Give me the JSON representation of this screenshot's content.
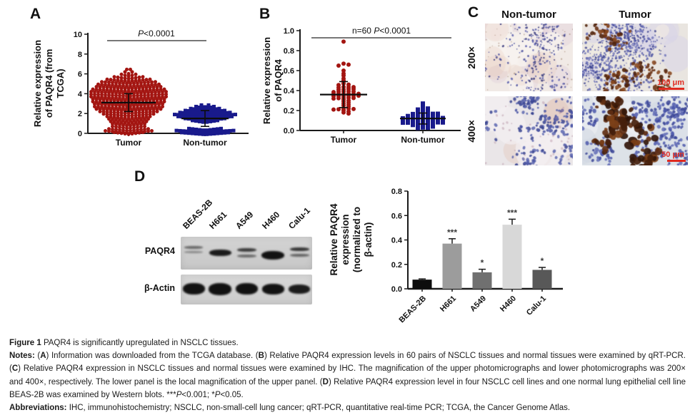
{
  "panels": {
    "A": {
      "label": "A"
    },
    "B": {
      "label": "B"
    },
    "C": {
      "label": "C",
      "col_headers": [
        "Non-tumor",
        "Tumor"
      ],
      "row_labels": [
        "200×",
        "400×"
      ],
      "scale_bars": [
        "100 μm",
        "50 μm"
      ],
      "scalebar_color": "#e02a20"
    },
    "D": {
      "label": "D",
      "blot": {
        "rows": [
          "PAQR4",
          "β-Actin"
        ],
        "lanes": [
          "BEAS-2B",
          "H661",
          "A549",
          "H460",
          "Calu-1"
        ],
        "paqr4_bands": [
          {
            "y": 13,
            "h": 5,
            "w": 26,
            "o": 0.55,
            "double": true
          },
          {
            "y": 18,
            "h": 9,
            "w": 31,
            "o": 0.95
          },
          {
            "y": 16,
            "h": 7,
            "w": 27,
            "o": 0.78,
            "double": true
          },
          {
            "y": 20,
            "h": 12,
            "w": 32,
            "o": 1.0
          },
          {
            "y": 15,
            "h": 7,
            "w": 27,
            "o": 0.82,
            "double": true
          }
        ],
        "actin_bands": [
          {
            "y": 12,
            "h": 16,
            "w": 31,
            "o": 1.0
          },
          {
            "y": 12,
            "h": 17,
            "w": 32,
            "o": 1.0
          },
          {
            "y": 12,
            "h": 16,
            "w": 31,
            "o": 1.0
          },
          {
            "y": 13,
            "h": 15,
            "w": 31,
            "o": 1.0
          },
          {
            "y": 14,
            "h": 13,
            "w": 30,
            "o": 0.95
          }
        ]
      }
    }
  },
  "colors": {
    "tumor_red": "#a31511",
    "nontumor_blue": "#191a8c",
    "axis": "#1a1a1a",
    "mean_line": "#0d0d0d"
  },
  "chart_data": [
    {
      "id": "A",
      "type": "scatter",
      "title": "",
      "ylabel": "Relative expression of PAQR4 (from TCGA)",
      "ylabel_lines": [
        "Relative expression",
        "of PAQR4 (from",
        "TCGA)"
      ],
      "ylim": [
        0,
        10
      ],
      "yticks": [
        "0",
        "2",
        "4",
        "6",
        "8",
        "10"
      ],
      "categories": [
        "Tumor",
        "Non-tumor"
      ],
      "annotation": [
        [
          "i",
          "P"
        ],
        [
          "r",
          "<0.0001"
        ]
      ],
      "series": [
        {
          "name": "Tumor",
          "marker": "circle",
          "color": "#a31511",
          "mean": 3.1,
          "sd": 0.9,
          "rows": [
            [
              6.45,
              2
            ],
            [
              6.2,
              3
            ],
            [
              5.95,
              5
            ],
            [
              5.7,
              9
            ],
            [
              5.45,
              13
            ],
            [
              5.2,
              16
            ],
            [
              4.95,
              18
            ],
            [
              4.7,
              19
            ],
            [
              4.45,
              21
            ],
            [
              4.2,
              22
            ],
            [
              3.95,
              22
            ],
            [
              3.7,
              22
            ],
            [
              3.45,
              21
            ],
            [
              3.2,
              21
            ],
            [
              2.95,
              20
            ],
            [
              2.7,
              20
            ],
            [
              2.45,
              19
            ],
            [
              2.2,
              17
            ],
            [
              1.95,
              15
            ],
            [
              1.7,
              13
            ],
            [
              1.45,
              12
            ],
            [
              1.2,
              11
            ],
            [
              0.95,
              10
            ],
            [
              0.7,
              10
            ],
            [
              0.45,
              12
            ],
            [
              0.25,
              14
            ],
            [
              0.1,
              9
            ]
          ]
        },
        {
          "name": "Non-tumor",
          "marker": "square",
          "color": "#191a8c",
          "mean": 1.5,
          "sd": 0.8,
          "rows": [
            [
              0.08,
              14
            ],
            [
              0.28,
              17
            ],
            [
              0.48,
              10
            ],
            [
              1.3,
              8
            ],
            [
              1.5,
              12
            ],
            [
              1.7,
              16
            ],
            [
              1.9,
              18
            ],
            [
              2.1,
              15
            ],
            [
              2.3,
              12
            ],
            [
              2.5,
              9
            ],
            [
              2.7,
              6
            ],
            [
              2.85,
              3
            ]
          ]
        }
      ]
    },
    {
      "id": "B",
      "type": "scatter",
      "title": "",
      "ylabel": "Relative expression of PAQR4",
      "ylabel_lines": [
        "Relative expression",
        "of PAQR4"
      ],
      "ylim": [
        0,
        1.0
      ],
      "yticks": [
        "0.0",
        "0.2",
        "0.4",
        "0.6",
        "0.8",
        "1.0"
      ],
      "categories": [
        "Tumor",
        "Non-tumor"
      ],
      "annotation": [
        [
          "r",
          "n=60 "
        ],
        [
          "i",
          "P"
        ],
        [
          "r",
          "<0.0001"
        ]
      ],
      "n": 60,
      "series": [
        {
          "name": "Tumor",
          "marker": "circle",
          "color": "#a31511",
          "mean": 0.36,
          "sd": 0.13,
          "points": [
            0.89,
            0.67,
            0.66,
            0.65,
            0.6,
            0.57,
            0.55,
            0.52,
            0.5,
            0.49,
            0.47,
            0.46,
            0.455,
            0.45,
            0.44,
            0.435,
            0.43,
            0.425,
            0.42,
            0.415,
            0.41,
            0.405,
            0.4,
            0.395,
            0.39,
            0.385,
            0.38,
            0.378,
            0.375,
            0.37,
            0.368,
            0.365,
            0.36,
            0.358,
            0.355,
            0.35,
            0.348,
            0.345,
            0.34,
            0.335,
            0.33,
            0.325,
            0.32,
            0.31,
            0.3,
            0.29,
            0.28,
            0.27,
            0.26,
            0.25,
            0.24,
            0.23,
            0.225,
            0.22,
            0.215,
            0.21,
            0.2,
            0.19,
            0.18,
            0.17
          ]
        },
        {
          "name": "Non-tumor",
          "marker": "square",
          "color": "#191a8c",
          "mean": 0.12,
          "sd": 0.055,
          "points": [
            0.27,
            0.25,
            0.23,
            0.22,
            0.21,
            0.2,
            0.195,
            0.19,
            0.185,
            0.18,
            0.175,
            0.17,
            0.168,
            0.165,
            0.16,
            0.158,
            0.155,
            0.152,
            0.15,
            0.148,
            0.145,
            0.142,
            0.14,
            0.138,
            0.135,
            0.132,
            0.13,
            0.128,
            0.125,
            0.122,
            0.12,
            0.118,
            0.115,
            0.112,
            0.11,
            0.108,
            0.105,
            0.102,
            0.1,
            0.098,
            0.095,
            0.092,
            0.09,
            0.088,
            0.085,
            0.082,
            0.08,
            0.078,
            0.075,
            0.07,
            0.065,
            0.06,
            0.055,
            0.05,
            0.045,
            0.04,
            0.035,
            0.03,
            0.028,
            0.025
          ]
        }
      ]
    },
    {
      "id": "D",
      "type": "bar",
      "title": "",
      "ylabel": "Relative PAQR4 expression (normalized to β-actin)",
      "ylabel_lines": [
        "Relative PAQR4",
        "expression",
        "(normalized to",
        "β-actin)"
      ],
      "ylim": [
        0,
        0.8
      ],
      "yticks": [
        "0.0",
        "0.2",
        "0.4",
        "0.6",
        "0.8"
      ],
      "categories": [
        "BEAS-2B",
        "H661",
        "A549",
        "H460",
        "Calu-1"
      ],
      "values": [
        0.075,
        0.37,
        0.135,
        0.525,
        0.155
      ],
      "errors": [
        0.006,
        0.04,
        0.025,
        0.045,
        0.02
      ],
      "sig": [
        "",
        "***",
        "*",
        "***",
        "*"
      ],
      "colors": [
        "#0d0d0d",
        "#9c9c9c",
        "#707070",
        "#d8d8d8",
        "#585858"
      ]
    }
  ],
  "micrographs": {
    "nt200": {
      "bg": "#f1eae6",
      "patches": [
        {
          "c": "#e3d3dc",
          "n": 10,
          "a": 0.5,
          "r": [
            8,
            22
          ]
        },
        {
          "c": "#f8f3ef",
          "n": 8,
          "a": 0.8,
          "r": [
            10,
            24
          ]
        },
        {
          "c": "#e8c9b8",
          "n": 6,
          "a": 0.25,
          "r": [
            10,
            20
          ]
        }
      ],
      "dots": [
        {
          "colors": [
            "#4a4f9e",
            "#5a5fae",
            "#37397c"
          ],
          "n": 300,
          "r": [
            0.7,
            1.6
          ],
          "a": 0.85,
          "clusters": 10,
          "spread": 30
        },
        {
          "colors": [
            "#8a6a52"
          ],
          "n": 55,
          "r": [
            0.5,
            1.1
          ],
          "a": 0.5,
          "clusters": 0,
          "spread": 0
        }
      ]
    },
    "t200": {
      "bg": "#e9e5e0",
      "patches": [
        {
          "c": "#d8d3e8",
          "n": 8,
          "a": 0.5,
          "r": [
            12,
            26
          ]
        },
        {
          "c": "#f3ece2",
          "n": 6,
          "a": 0.6,
          "r": [
            10,
            20
          ]
        }
      ],
      "dots": [
        {
          "colors": [
            "#4d55a8",
            "#3c4290",
            "#6a6fb8"
          ],
          "n": 800,
          "r": [
            0.8,
            1.8
          ],
          "a": 0.8,
          "clusters": 7,
          "spread": 36
        },
        {
          "colors": [
            "#6b3316",
            "#51240c",
            "#8a4a22"
          ],
          "n": 175,
          "r": [
            1.4,
            3.2
          ],
          "a": 0.9,
          "clusters": 6,
          "spread": 26
        }
      ]
    },
    "nt400": {
      "bg": "#eae6e8",
      "patches": [
        {
          "c": "#e2bfb2",
          "n": 7,
          "a": 0.35,
          "r": [
            10,
            24
          ]
        },
        {
          "c": "#f4f0f2",
          "n": 8,
          "a": 0.7,
          "r": [
            12,
            26
          ]
        }
      ],
      "dots": [
        {
          "colors": [
            "#4a55a5",
            "#3a4490",
            "#5c66b0"
          ],
          "n": 240,
          "r": [
            1.4,
            2.6
          ],
          "a": 0.85,
          "clusters": 9,
          "spread": 25
        },
        {
          "colors": [
            "#b0889a"
          ],
          "n": 40,
          "r": [
            1,
            2
          ],
          "a": 0.4,
          "clusters": 0,
          "spread": 0
        }
      ]
    },
    "t400": {
      "bg": "#dde2e8",
      "patches": [
        {
          "c": "#eef0f4",
          "n": 6,
          "a": 0.6,
          "r": [
            12,
            26
          ]
        },
        {
          "c": "#cfd6e2",
          "n": 6,
          "a": 0.5,
          "r": [
            10,
            22
          ]
        }
      ],
      "dots": [
        {
          "colors": [
            "#4c58ac",
            "#3b4596",
            "#626cb6"
          ],
          "n": 330,
          "r": [
            1.5,
            2.8
          ],
          "a": 0.85,
          "clusters": 8,
          "spread": 27
        },
        {
          "colors": [
            "#45200c",
            "#5f2e12",
            "#7c4018",
            "#33170a"
          ],
          "n": 115,
          "r": [
            2.5,
            6
          ],
          "a": 0.92,
          "clusters": 6,
          "spread": 23
        }
      ]
    }
  },
  "caption": {
    "paragraphs": [
      [
        [
          "b",
          "Figure 1 "
        ],
        [
          "r",
          "PAQR4 is significantly upregulated in NSCLC tissues."
        ]
      ],
      [
        [
          "b",
          "Notes: "
        ],
        [
          "r",
          "("
        ],
        [
          "b",
          "A"
        ],
        [
          "r",
          ") Information was downloaded from the TCGA database. ("
        ],
        [
          "b",
          "B"
        ],
        [
          "r",
          ") Relative PAQR4 expression levels in 60 pairs of NSCLC tissues and normal tissues were examined by qRT-PCR. ("
        ],
        [
          "b",
          "C"
        ],
        [
          "r",
          ") Relative PAQR4 expression in NSCLC tissues and normal tissues were examined by IHC. The magnification of the upper photomicrographs and lower photomicrographs was 200× and 400×, respectively. The lower panel is the local magnification of the upper panel. ("
        ],
        [
          "b",
          "D"
        ],
        [
          "r",
          ") Relative PAQR4 expression level in four NSCLC cell lines and one normal lung epithelial cell line BEAS-2B was examined by Western blots. ***"
        ],
        [
          "i",
          "P"
        ],
        [
          "r",
          "<0.001; *"
        ],
        [
          "i",
          "P"
        ],
        [
          "r",
          "<0.05."
        ]
      ],
      [
        [
          "b",
          "Abbreviations: "
        ],
        [
          "r",
          "IHC, immunohistochemistry; NSCLC, non-small-cell lung cancer; qRT-PCR, quantitative real-time PCR; TCGA, the Cancer Genome Atlas."
        ]
      ]
    ]
  }
}
